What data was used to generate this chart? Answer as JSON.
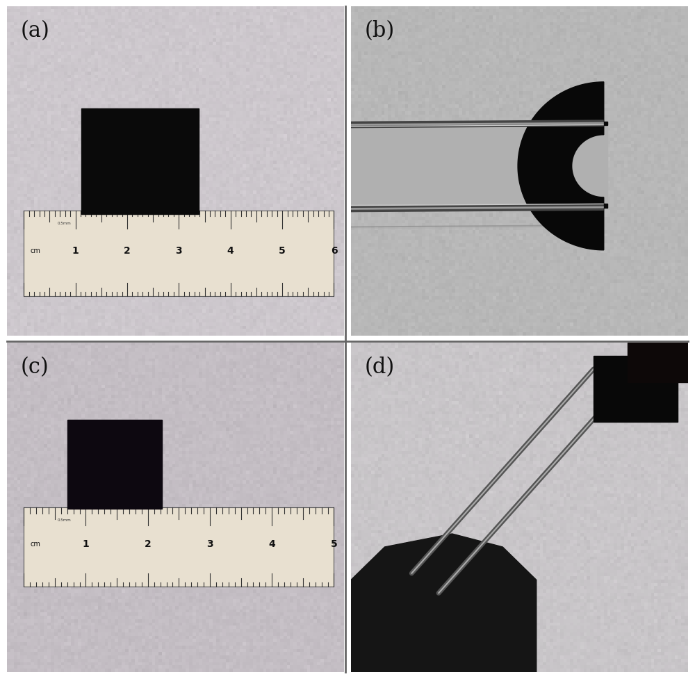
{
  "figsize": [
    10.0,
    9.78
  ],
  "dpi": 100,
  "panels": [
    "(a)",
    "(b)",
    "(c)",
    "(d)"
  ],
  "bg_color_a": "#cdc8cd",
  "bg_color_b": "#b8b8b8",
  "bg_color_c": "#c4bec4",
  "bg_color_d": "#c8c4c8",
  "label_fontsize": 22,
  "label_color": "#111111",
  "border_color": "#888888",
  "border_width": 2
}
